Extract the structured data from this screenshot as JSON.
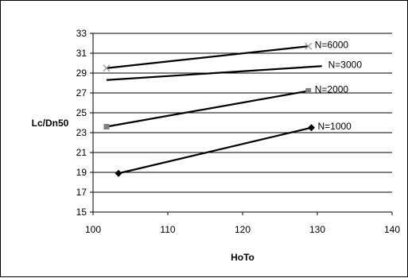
{
  "chart_data": {
    "type": "line",
    "title": "",
    "xlabel": "HoTo",
    "ylabel": "Lc/Dn50",
    "xlim": [
      100,
      140
    ],
    "ylim": [
      15,
      33
    ],
    "x_ticks": [
      100,
      110,
      120,
      130,
      140
    ],
    "y_ticks": [
      15,
      17,
      19,
      21,
      23,
      25,
      27,
      29,
      31,
      33
    ],
    "grid": "horizontal major gridlines",
    "legend": "none (series labeled at line ends)",
    "series": [
      {
        "name": "N=6000",
        "marker": "x",
        "color": "#000000",
        "marker_color": "#9a9a9a",
        "x": [
          101.8,
          128.8
        ],
        "y": [
          29.5,
          31.7
        ]
      },
      {
        "name": "N=3000",
        "marker": "none",
        "color": "#000000",
        "marker_color": "#9a9a9a",
        "x": [
          101.8,
          130.6
        ],
        "y": [
          28.3,
          29.7
        ]
      },
      {
        "name": "N=2000",
        "marker": "square",
        "color": "#000000",
        "marker_color": "#808080",
        "x": [
          101.8,
          128.8
        ],
        "y": [
          23.6,
          27.2
        ]
      },
      {
        "name": "N=1000",
        "marker": "diamond",
        "color": "#000000",
        "marker_color": "#000000",
        "x": [
          103.4,
          129.2
        ],
        "y": [
          18.9,
          23.5
        ]
      }
    ]
  }
}
